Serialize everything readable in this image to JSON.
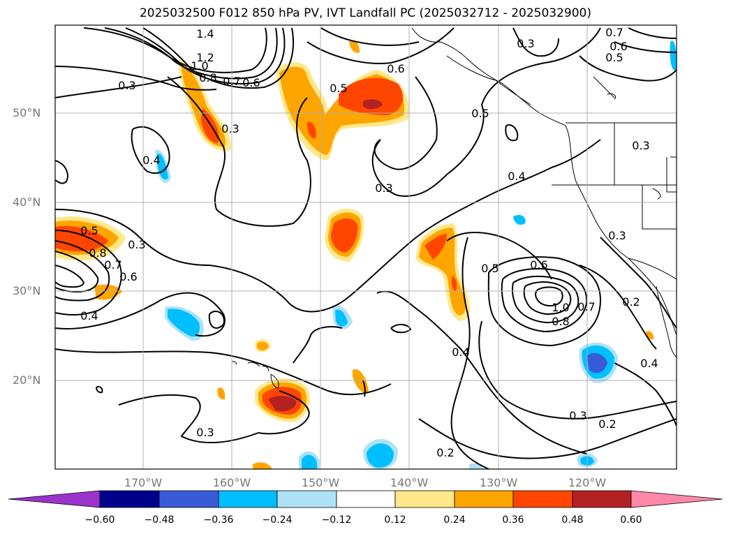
{
  "title": "2025032500 F012 850 hPa PV, IVT Landfall PC (2025032712 - 2025032900)",
  "map": {
    "lat_labels": [
      "50°N",
      "40°N",
      "30°N",
      "20°N"
    ],
    "lon_labels": [
      "170°W",
      "160°W",
      "150°W",
      "140°W",
      "130°W",
      "120°W"
    ],
    "contour_labels": [
      "1.4",
      "1.2",
      "1.0",
      "0.8",
      "0.7",
      "0.6",
      "0.3",
      "0.5",
      "0.6",
      "0.3",
      "0.5",
      "0.7",
      "0.6",
      "0.5",
      "0.3",
      "0.4",
      "0.3",
      "0.4",
      "0.5",
      "0.8",
      "0.7",
      "0.6",
      "0.3",
      "0.4",
      "0.5",
      "0.6",
      "1.0",
      "0.8",
      "0.7",
      "0.3",
      "0.2",
      "0.4",
      "0.4",
      "0.3",
      "0.2",
      "0.3",
      "0.2",
      "0.3"
    ]
  },
  "colorbar": {
    "ticks": [
      "−0.60",
      "−0.48",
      "−0.36",
      "−0.24",
      "−0.12",
      "0.12",
      "0.24",
      "0.36",
      "0.48",
      "0.60"
    ],
    "colors": [
      "#9933cc",
      "#00008b",
      "#3a5bd6",
      "#00bfff",
      "#aee2f7",
      "#ffffff",
      "#ffe88a",
      "#ffa500",
      "#ff4500",
      "#b22222",
      "#ff88aa"
    ]
  }
}
